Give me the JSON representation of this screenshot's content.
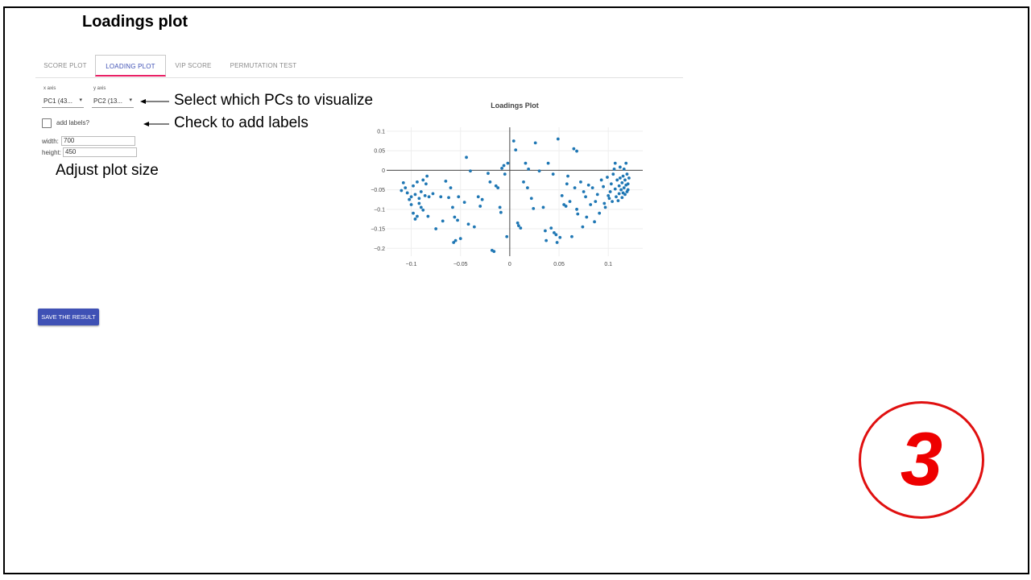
{
  "slide_title": "Loadings plot",
  "tabs": [
    "SCORE PLOT",
    "LOADING PLOT",
    "VIP SCORE",
    "PERMUTATION TEST"
  ],
  "active_tab": "LOADING PLOT",
  "x_axis": {
    "label": "x axis",
    "value": "PC1 (43..."
  },
  "y_axis": {
    "label": "y axis",
    "value": "PC2 (13..."
  },
  "add_labels": {
    "label": "add labels?",
    "checked": false
  },
  "size": {
    "width_label": "width:",
    "width_value": "700",
    "height_label": "height:",
    "height_value": "450"
  },
  "annotations": {
    "select_pcs": "Select which PCs to visualize",
    "check_labels": "Check to add labels",
    "adjust_size": "Adjust plot size"
  },
  "save_button": "SAVE THE RESULT",
  "badge": "3",
  "colors": {
    "accent": "#3f51b5",
    "tab_indicator": "#e91e63",
    "marker": "#1f77b4",
    "badge": "#ee0000"
  },
  "chart_data": {
    "type": "scatter",
    "title": "Loadings Plot",
    "xlim": [
      -0.125,
      0.135
    ],
    "ylim": [
      -0.22,
      0.11
    ],
    "xticks": [
      -0.1,
      -0.05,
      0,
      0.05,
      0.1
    ],
    "xtick_labels": [
      "−0.1",
      "−0.05",
      "0",
      "0.05",
      "0.1"
    ],
    "yticks": [
      0.1,
      0.05,
      0,
      -0.05,
      -0.1,
      -0.15,
      -0.2
    ],
    "ytick_labels": [
      "0.1",
      "0.05",
      "0",
      "−0.05",
      "−0.1",
      "−0.15",
      "−0.2"
    ],
    "grid": true,
    "points": [
      [
        -0.108,
        -0.032
      ],
      [
        -0.106,
        -0.045
      ],
      [
        -0.104,
        -0.058
      ],
      [
        -0.11,
        -0.052
      ],
      [
        -0.1,
        -0.068
      ],
      [
        -0.098,
        -0.04
      ],
      [
        -0.096,
        -0.062
      ],
      [
        -0.102,
        -0.075
      ],
      [
        -0.094,
        -0.03
      ],
      [
        -0.092,
        -0.072
      ],
      [
        -0.09,
        -0.055
      ],
      [
        -0.088,
        -0.025
      ],
      [
        -0.086,
        -0.065
      ],
      [
        -0.084,
        -0.015
      ],
      [
        -0.082,
        -0.068
      ],
      [
        -0.098,
        -0.11
      ],
      [
        -0.094,
        -0.118
      ],
      [
        -0.09,
        -0.095
      ],
      [
        -0.096,
        -0.125
      ],
      [
        -0.088,
        -0.102
      ],
      [
        -0.083,
        -0.118
      ],
      [
        -0.085,
        -0.035
      ],
      [
        -0.092,
        -0.085
      ],
      [
        -0.1,
        -0.088
      ],
      [
        -0.078,
        -0.06
      ],
      [
        -0.075,
        -0.15
      ],
      [
        -0.07,
        -0.068
      ],
      [
        -0.068,
        -0.13
      ],
      [
        -0.065,
        -0.028
      ],
      [
        -0.062,
        -0.07
      ],
      [
        -0.06,
        -0.045
      ],
      [
        -0.058,
        -0.095
      ],
      [
        -0.056,
        -0.12
      ],
      [
        -0.055,
        -0.18
      ],
      [
        -0.057,
        -0.185
      ],
      [
        -0.053,
        -0.128
      ],
      [
        -0.052,
        -0.068
      ],
      [
        -0.05,
        -0.175
      ],
      [
        -0.046,
        -0.082
      ],
      [
        -0.044,
        0.033
      ],
      [
        -0.042,
        -0.138
      ],
      [
        -0.04,
        -0.002
      ],
      [
        -0.036,
        -0.145
      ],
      [
        -0.032,
        -0.068
      ],
      [
        -0.03,
        -0.092
      ],
      [
        -0.028,
        -0.075
      ],
      [
        -0.022,
        -0.008
      ],
      [
        -0.02,
        -0.03
      ],
      [
        -0.018,
        -0.205
      ],
      [
        -0.016,
        -0.208
      ],
      [
        -0.014,
        -0.04
      ],
      [
        -0.012,
        -0.045
      ],
      [
        -0.01,
        -0.095
      ],
      [
        -0.009,
        -0.108
      ],
      [
        -0.008,
        0.005
      ],
      [
        -0.006,
        0.012
      ],
      [
        -0.005,
        -0.01
      ],
      [
        -0.003,
        -0.17
      ],
      [
        -0.002,
        0.018
      ],
      [
        0.004,
        0.075
      ],
      [
        0.006,
        0.052
      ],
      [
        0.008,
        -0.135
      ],
      [
        0.009,
        -0.142
      ],
      [
        0.011,
        -0.148
      ],
      [
        0.014,
        -0.03
      ],
      [
        0.016,
        0.018
      ],
      [
        0.018,
        -0.045
      ],
      [
        0.019,
        0.003
      ],
      [
        0.022,
        -0.072
      ],
      [
        0.024,
        -0.098
      ],
      [
        0.026,
        0.07
      ],
      [
        0.03,
        -0.002
      ],
      [
        0.034,
        -0.095
      ],
      [
        0.036,
        -0.155
      ],
      [
        0.037,
        -0.18
      ],
      [
        0.039,
        0.018
      ],
      [
        0.042,
        -0.148
      ],
      [
        0.044,
        -0.01
      ],
      [
        0.045,
        -0.16
      ],
      [
        0.047,
        -0.165
      ],
      [
        0.048,
        -0.185
      ],
      [
        0.049,
        0.08
      ],
      [
        0.051,
        -0.172
      ],
      [
        0.053,
        -0.065
      ],
      [
        0.055,
        -0.088
      ],
      [
        0.057,
        -0.092
      ],
      [
        0.058,
        -0.035
      ],
      [
        0.059,
        -0.015
      ],
      [
        0.061,
        -0.08
      ],
      [
        0.063,
        -0.17
      ],
      [
        0.065,
        0.055
      ],
      [
        0.066,
        -0.045
      ],
      [
        0.068,
        0.049
      ],
      [
        0.068,
        -0.1
      ],
      [
        0.069,
        -0.112
      ],
      [
        0.072,
        -0.03
      ],
      [
        0.074,
        -0.145
      ],
      [
        0.075,
        -0.055
      ],
      [
        0.077,
        -0.068
      ],
      [
        0.078,
        -0.12
      ],
      [
        0.08,
        -0.038
      ],
      [
        0.082,
        -0.088
      ],
      [
        0.084,
        -0.045
      ],
      [
        0.086,
        -0.132
      ],
      [
        0.087,
        -0.08
      ],
      [
        0.089,
        -0.062
      ],
      [
        0.091,
        -0.11
      ],
      [
        0.093,
        -0.025
      ],
      [
        0.095,
        -0.042
      ],
      [
        0.096,
        -0.085
      ],
      [
        0.097,
        -0.095
      ],
      [
        0.099,
        -0.018
      ],
      [
        0.1,
        -0.065
      ],
      [
        0.101,
        -0.072
      ],
      [
        0.102,
        -0.055
      ],
      [
        0.103,
        -0.035
      ],
      [
        0.104,
        -0.08
      ],
      [
        0.105,
        -0.01
      ],
      [
        0.106,
        0.003
      ],
      [
        0.107,
        -0.048
      ],
      [
        0.107,
        0.018
      ],
      [
        0.108,
        -0.068
      ],
      [
        0.109,
        -0.025
      ],
      [
        0.11,
        -0.078
      ],
      [
        0.111,
        -0.04
      ],
      [
        0.111,
        -0.06
      ],
      [
        0.112,
        0.008
      ],
      [
        0.112,
        -0.02
      ],
      [
        0.113,
        -0.05
      ],
      [
        0.114,
        -0.07
      ],
      [
        0.114,
        -0.032
      ],
      [
        0.115,
        -0.015
      ],
      [
        0.115,
        -0.058
      ],
      [
        0.116,
        0.003
      ],
      [
        0.116,
        -0.045
      ],
      [
        0.117,
        -0.062
      ],
      [
        0.117,
        -0.025
      ],
      [
        0.118,
        -0.038
      ],
      [
        0.118,
        0.018
      ],
      [
        0.119,
        -0.055
      ],
      [
        0.119,
        -0.01
      ],
      [
        0.12,
        -0.035
      ],
      [
        0.12,
        -0.05
      ],
      [
        0.121,
        -0.02
      ]
    ]
  }
}
